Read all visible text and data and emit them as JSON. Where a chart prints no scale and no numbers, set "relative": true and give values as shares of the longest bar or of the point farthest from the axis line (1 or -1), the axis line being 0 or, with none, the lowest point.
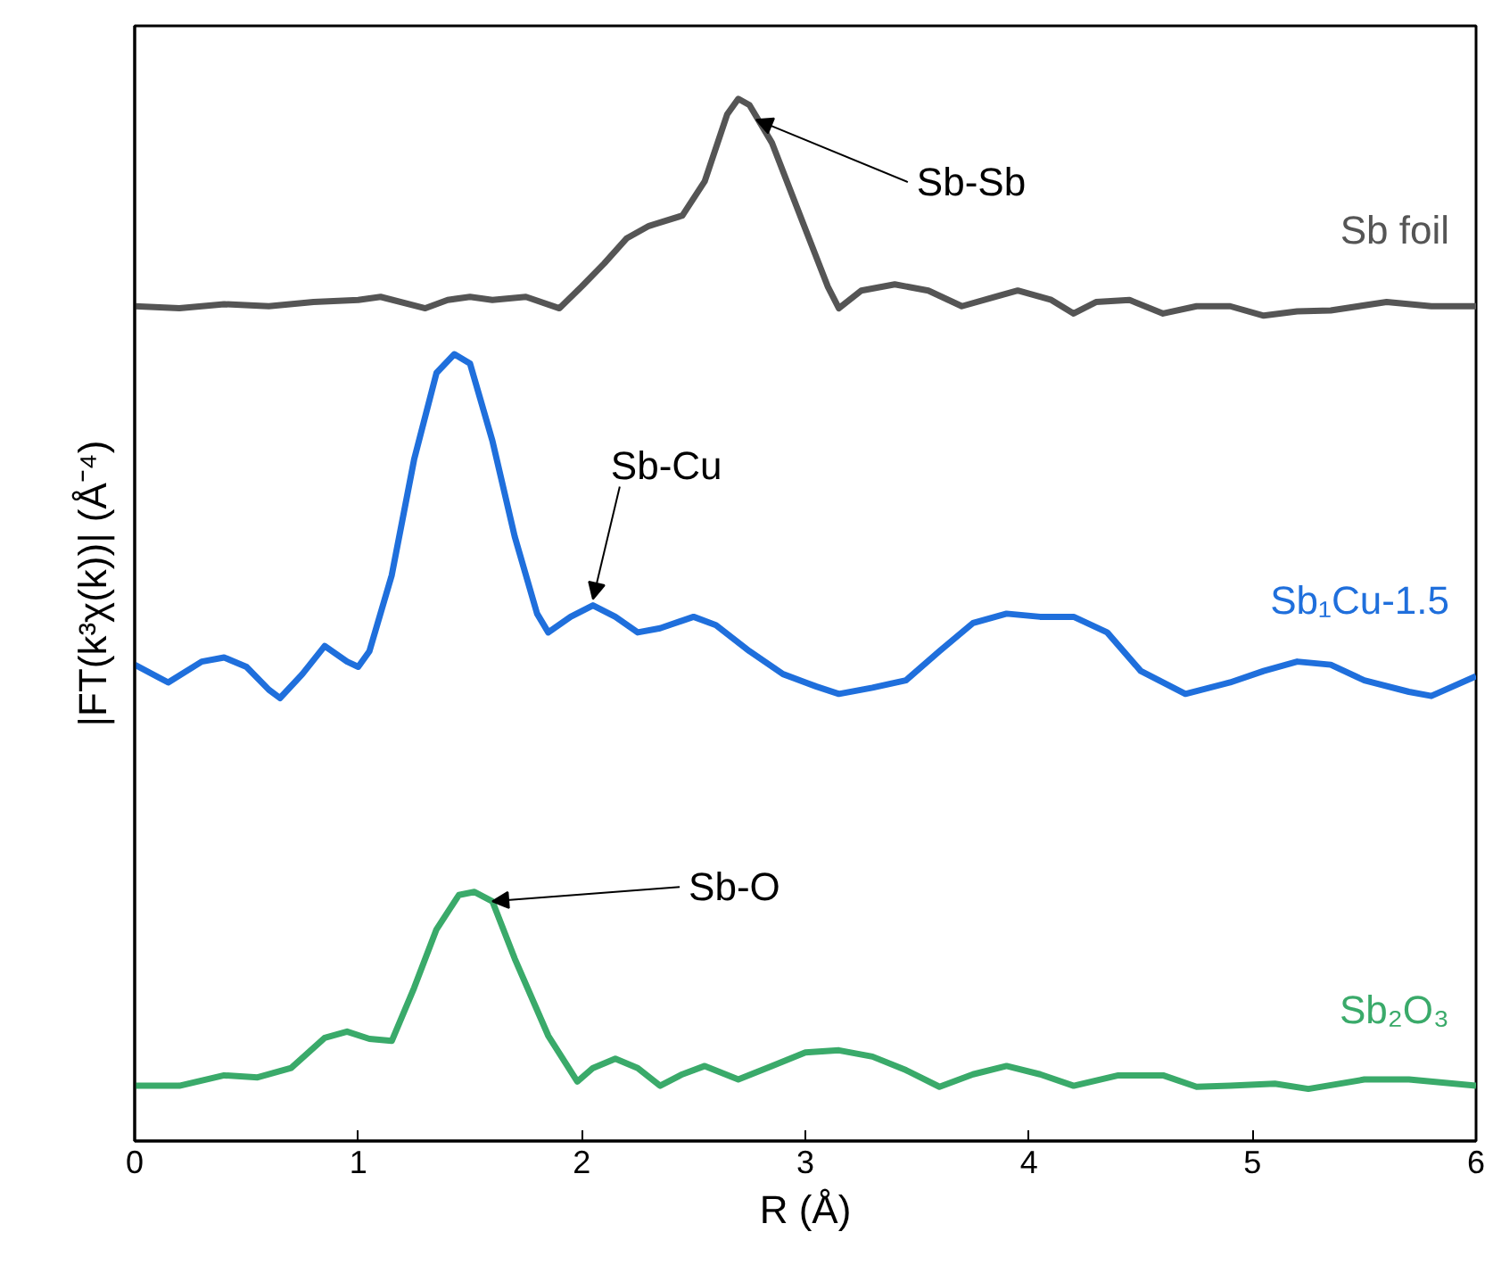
{
  "chart_data": {
    "type": "line",
    "relative": true,
    "xlabel": "R (Å)",
    "ylabel": "|FT(k³χ(k))| (Å⁻⁴)",
    "xlim": [
      0,
      6
    ],
    "xticks": [
      0,
      1,
      2,
      3,
      4,
      5,
      6
    ],
    "tick_labels": "x",
    "grid": false,
    "legend": false,
    "marker": "none",
    "line_style": "solid",
    "series": [
      {
        "name": "Sb foil",
        "color": "#555555",
        "x": [
          0,
          0.2,
          0.4,
          0.6,
          0.8,
          1.0,
          1.1,
          1.3,
          1.4,
          1.5,
          1.6,
          1.75,
          1.9,
          2.0,
          2.1,
          2.2,
          2.3,
          2.45,
          2.55,
          2.65,
          2.7,
          2.75,
          2.85,
          3.0,
          3.1,
          3.15,
          3.25,
          3.4,
          3.55,
          3.7,
          3.85,
          3.95,
          4.1,
          4.2,
          4.3,
          4.45,
          4.6,
          4.75,
          4.9,
          5.05,
          5.2,
          5.35,
          5.6,
          5.8,
          6.0
        ],
        "values": [
          0.801,
          0.799,
          0.803,
          0.801,
          0.805,
          0.807,
          0.81,
          0.799,
          0.807,
          0.81,
          0.807,
          0.81,
          0.799,
          0.82,
          0.842,
          0.866,
          0.878,
          0.888,
          0.921,
          0.985,
          1.0,
          0.994,
          0.958,
          0.875,
          0.82,
          0.799,
          0.816,
          0.822,
          0.816,
          0.801,
          0.81,
          0.816,
          0.807,
          0.794,
          0.805,
          0.807,
          0.794,
          0.801,
          0.801,
          0.792,
          0.796,
          0.797,
          0.805,
          0.801,
          0.801
        ]
      },
      {
        "name": "Sb₁Cu-1.5",
        "color": "#1f6fdc",
        "x": [
          0,
          0.15,
          0.3,
          0.4,
          0.5,
          0.6,
          0.65,
          0.75,
          0.85,
          0.95,
          1.0,
          1.05,
          1.15,
          1.25,
          1.35,
          1.43,
          1.5,
          1.6,
          1.7,
          1.8,
          1.85,
          1.95,
          2.05,
          2.15,
          2.25,
          2.35,
          2.5,
          2.6,
          2.75,
          2.9,
          3.05,
          3.15,
          3.3,
          3.45,
          3.6,
          3.75,
          3.9,
          4.05,
          4.2,
          4.35,
          4.5,
          4.7,
          4.9,
          5.05,
          5.2,
          5.35,
          5.5,
          5.7,
          5.8,
          6.0
        ],
        "values": [
          0.457,
          0.44,
          0.46,
          0.464,
          0.455,
          0.433,
          0.425,
          0.448,
          0.475,
          0.46,
          0.455,
          0.47,
          0.543,
          0.654,
          0.737,
          0.755,
          0.746,
          0.672,
          0.58,
          0.506,
          0.488,
          0.503,
          0.514,
          0.503,
          0.488,
          0.492,
          0.503,
          0.495,
          0.47,
          0.448,
          0.436,
          0.429,
          0.435,
          0.442,
          0.47,
          0.497,
          0.506,
          0.503,
          0.503,
          0.488,
          0.451,
          0.429,
          0.44,
          0.451,
          0.46,
          0.457,
          0.442,
          0.431,
          0.427,
          0.446
        ]
      },
      {
        "name": "Sb₂O₃",
        "color": "#3aaa6a",
        "x": [
          0,
          0.2,
          0.4,
          0.55,
          0.7,
          0.85,
          0.95,
          1.05,
          1.15,
          1.25,
          1.35,
          1.45,
          1.52,
          1.6,
          1.7,
          1.85,
          1.98,
          2.05,
          2.15,
          2.25,
          2.35,
          2.45,
          2.55,
          2.7,
          2.85,
          3.0,
          3.15,
          3.3,
          3.45,
          3.6,
          3.75,
          3.9,
          4.05,
          4.2,
          4.4,
          4.6,
          4.75,
          4.9,
          5.1,
          5.25,
          5.5,
          5.7,
          6.0
        ],
        "values": [
          0.053,
          0.053,
          0.063,
          0.061,
          0.07,
          0.099,
          0.105,
          0.098,
          0.096,
          0.147,
          0.203,
          0.236,
          0.239,
          0.23,
          0.175,
          0.101,
          0.057,
          0.07,
          0.079,
          0.07,
          0.053,
          0.064,
          0.072,
          0.059,
          0.072,
          0.085,
          0.087,
          0.081,
          0.068,
          0.052,
          0.064,
          0.072,
          0.064,
          0.053,
          0.063,
          0.063,
          0.052,
          0.053,
          0.055,
          0.05,
          0.059,
          0.059,
          0.053
        ]
      }
    ],
    "annotations": [
      {
        "text": "Sb-Sb",
        "x": 2.78,
        "y": 0.98
      },
      {
        "text": "Sb-Cu",
        "x": 2.05,
        "y": 0.52
      },
      {
        "text": "Sb-O",
        "x": 1.6,
        "y": 0.23
      }
    ]
  }
}
